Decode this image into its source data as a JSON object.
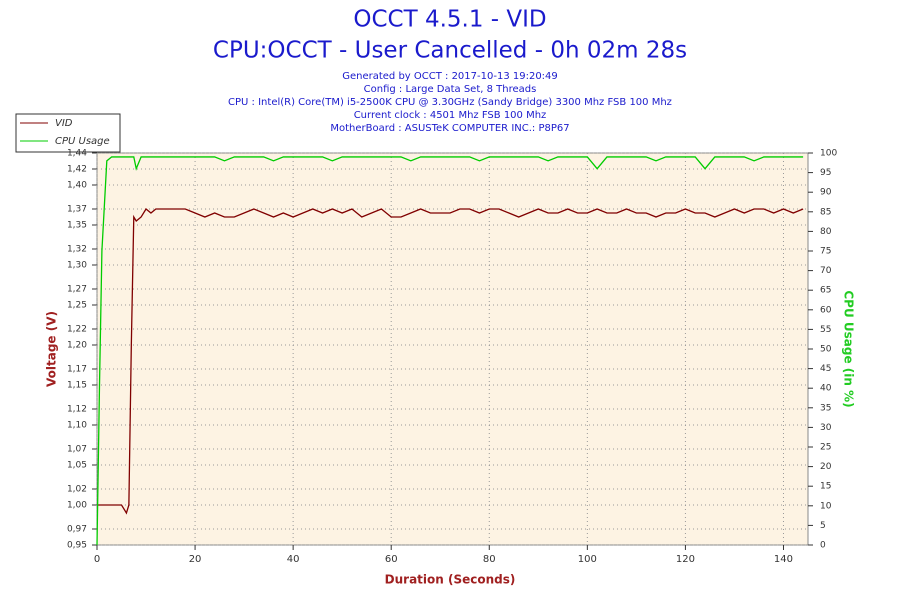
{
  "chart_data": {
    "type": "line",
    "title": "OCCT 4.5.1 - VID",
    "subtitle": "CPU:OCCT - User Cancelled - 0h 02m 28s",
    "info": [
      "Generated by OCCT : 2017-10-13 19:20:49",
      "Config : Large Data Set, 8 Threads",
      "CPU : Intel(R) Core(TM) i5-2500K CPU @ 3.30GHz (Sandy Bridge) 3300 Mhz FSB 100 Mhz",
      "Current clock : 4501 Mhz FSB 100 Mhz",
      "MotherBoard : ASUSTeK COMPUTER INC.: P8P67"
    ],
    "xlabel": "Duration (Seconds)",
    "ylabel": "Voltage (V)",
    "y2label": "CPU Usage (in %)",
    "x": [
      0,
      0.5,
      1,
      2,
      3,
      4,
      5,
      6,
      6.5,
      7,
      7.5,
      8,
      9,
      10,
      11,
      12,
      14,
      16,
      18,
      20,
      22,
      24,
      26,
      28,
      30,
      32,
      34,
      36,
      38,
      40,
      42,
      44,
      46,
      48,
      50,
      52,
      54,
      56,
      58,
      60,
      62,
      64,
      66,
      68,
      70,
      72,
      74,
      76,
      78,
      80,
      82,
      84,
      86,
      88,
      90,
      92,
      94,
      96,
      98,
      100,
      102,
      104,
      106,
      108,
      110,
      112,
      114,
      116,
      118,
      120,
      122,
      124,
      126,
      128,
      130,
      132,
      134,
      136,
      138,
      140,
      142,
      144
    ],
    "series": [
      {
        "name": "VID",
        "color": "#800000",
        "values": [
          1.0,
          1.0,
          1.0,
          1.0,
          1.0,
          1.0,
          1.0,
          0.99,
          1.0,
          1.2,
          1.36,
          1.355,
          1.36,
          1.37,
          1.365,
          1.37,
          1.37,
          1.37,
          1.37,
          1.365,
          1.36,
          1.365,
          1.36,
          1.36,
          1.365,
          1.37,
          1.365,
          1.36,
          1.365,
          1.36,
          1.365,
          1.37,
          1.365,
          1.37,
          1.365,
          1.37,
          1.36,
          1.365,
          1.37,
          1.36,
          1.36,
          1.365,
          1.37,
          1.365,
          1.365,
          1.365,
          1.37,
          1.37,
          1.365,
          1.37,
          1.37,
          1.365,
          1.36,
          1.365,
          1.37,
          1.365,
          1.365,
          1.37,
          1.365,
          1.365,
          1.37,
          1.365,
          1.365,
          1.37,
          1.365,
          1.365,
          1.36,
          1.365,
          1.365,
          1.37,
          1.365,
          1.365,
          1.36,
          1.365,
          1.37,
          1.365,
          1.37,
          1.37,
          1.365,
          1.37,
          1.365,
          1.37
        ]
      },
      {
        "name": "CPU Usage",
        "color": "#00cc00",
        "axis": "y2",
        "values": [
          0,
          40,
          75,
          98,
          99,
          99,
          99,
          99,
          99,
          99,
          99,
          96,
          99,
          99,
          99,
          99,
          99,
          99,
          99,
          99,
          99,
          99,
          98,
          99,
          99,
          99,
          99,
          98,
          99,
          99,
          99,
          99,
          99,
          98,
          99,
          99,
          99,
          99,
          99,
          99,
          99,
          98,
          99,
          99,
          99,
          99,
          99,
          99,
          98,
          99,
          99,
          99,
          99,
          99,
          99,
          98,
          99,
          99,
          99,
          99,
          96,
          99,
          99,
          99,
          99,
          99,
          98,
          99,
          99,
          99,
          99,
          96,
          99,
          99,
          99,
          99,
          98,
          99,
          99,
          99,
          99,
          99
        ]
      }
    ],
    "xlim": [
      0,
      145
    ],
    "xticks": [
      0,
      20,
      40,
      60,
      80,
      100,
      120,
      140
    ],
    "ylim": [
      0.95,
      1.44
    ],
    "yticks": [
      {
        "value": 0.95,
        "label": "0,95"
      },
      {
        "value": 0.97,
        "label": "0,97"
      },
      {
        "value": 1.0,
        "label": "1,00"
      },
      {
        "value": 1.02,
        "label": "1,02"
      },
      {
        "value": 1.05,
        "label": "1,05"
      },
      {
        "value": 1.07,
        "label": "1,07"
      },
      {
        "value": 1.1,
        "label": "1,10"
      },
      {
        "value": 1.12,
        "label": "1,12"
      },
      {
        "value": 1.15,
        "label": "1,15"
      },
      {
        "value": 1.17,
        "label": "1,17"
      },
      {
        "value": 1.2,
        "label": "1,20"
      },
      {
        "value": 1.22,
        "label": "1,22"
      },
      {
        "value": 1.25,
        "label": "1,25"
      },
      {
        "value": 1.27,
        "label": "1,27"
      },
      {
        "value": 1.3,
        "label": "1,30"
      },
      {
        "value": 1.32,
        "label": "1,32"
      },
      {
        "value": 1.35,
        "label": "1,35"
      },
      {
        "value": 1.37,
        "label": "1,37"
      },
      {
        "value": 1.4,
        "label": "1,40"
      },
      {
        "value": 1.42,
        "label": "1,42"
      },
      {
        "value": 1.44,
        "label": "1,44"
      }
    ],
    "y2lim": [
      0,
      100
    ],
    "y2ticks": [
      0,
      5,
      10,
      15,
      20,
      25,
      30,
      35,
      40,
      45,
      50,
      55,
      60,
      65,
      70,
      75,
      80,
      85,
      90,
      95,
      100
    ],
    "grid": true
  }
}
